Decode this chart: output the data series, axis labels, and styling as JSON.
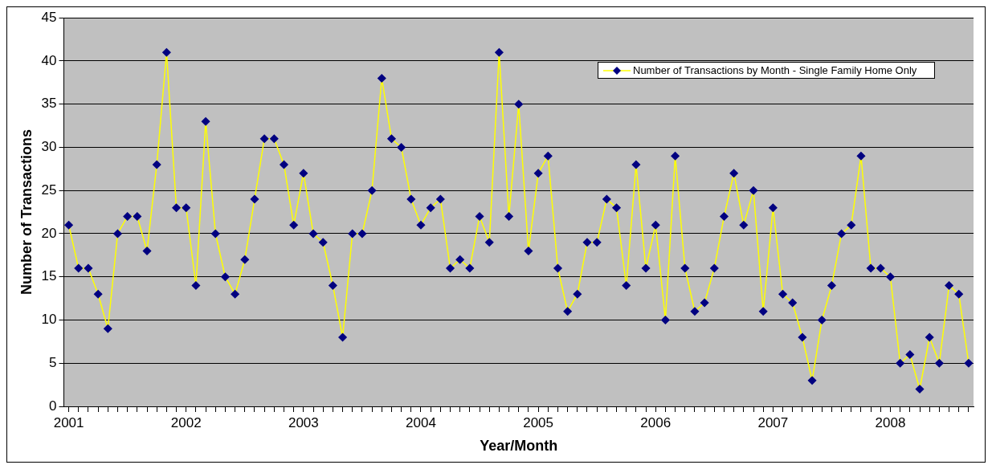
{
  "chart_data": {
    "type": "line",
    "xlabel": "Year/Month",
    "ylabel": "Number of Transactions",
    "categories": [
      "2001",
      null,
      null,
      null,
      null,
      null,
      null,
      null,
      null,
      null,
      null,
      null,
      "2002",
      null,
      null,
      null,
      null,
      null,
      null,
      null,
      null,
      null,
      null,
      null,
      "2003",
      null,
      null,
      null,
      null,
      null,
      null,
      null,
      null,
      null,
      null,
      null,
      "2004",
      null,
      null,
      null,
      null,
      null,
      null,
      null,
      null,
      null,
      null,
      null,
      "2005",
      null,
      null,
      null,
      null,
      null,
      null,
      null,
      null,
      null,
      null,
      null,
      "2006",
      null,
      null,
      null,
      null,
      null,
      null,
      null,
      null,
      null,
      null,
      null,
      "2007",
      null,
      null,
      null,
      null,
      null,
      null,
      null,
      null,
      null,
      null,
      null,
      "2008",
      null,
      null,
      null,
      null,
      null,
      null,
      null,
      null
    ],
    "series": [
      {
        "name": "Number of Transactions by Month - Single Family Home Only",
        "color": "#ffff00",
        "values": [
          21,
          16,
          16,
          13,
          9,
          20,
          22,
          22,
          18,
          28,
          41,
          23,
          23,
          14,
          33,
          20,
          15,
          13,
          17,
          24,
          31,
          31,
          28,
          21,
          27,
          20,
          19,
          14,
          8,
          20,
          20,
          25,
          38,
          31,
          30,
          24,
          21,
          23,
          24,
          16,
          17,
          16,
          22,
          19,
          41,
          22,
          35,
          18,
          27,
          29,
          16,
          11,
          13,
          19,
          19,
          24,
          23,
          14,
          28,
          16,
          21,
          10,
          29,
          16,
          11,
          12,
          16,
          22,
          27,
          21,
          25,
          11,
          23,
          13,
          12,
          8,
          3,
          10,
          14,
          20,
          21,
          29,
          16,
          16,
          15,
          5,
          6,
          2,
          8,
          5,
          14,
          13,
          5
        ]
      }
    ],
    "ylim": [
      0,
      45
    ],
    "yticks": [
      0,
      5,
      10,
      15,
      20,
      25,
      30,
      35,
      40,
      45
    ],
    "grid": "y",
    "legend": "top right",
    "marker": "diamond",
    "line_style": "solid"
  }
}
